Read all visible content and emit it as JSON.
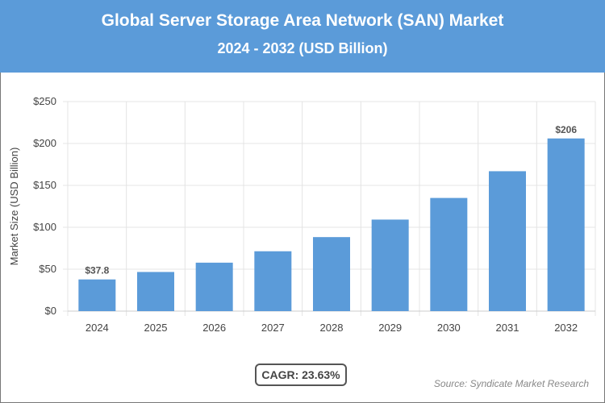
{
  "chart_data": {
    "type": "bar",
    "title": "Global Server Storage Area Network (SAN) Market",
    "subtitle": "2024 - 2032 (USD Billion)",
    "ylabel": "Market Size (USD Billion)",
    "xlabel": "",
    "categories": [
      "2024",
      "2025",
      "2026",
      "2027",
      "2028",
      "2029",
      "2030",
      "2031",
      "2032"
    ],
    "values": [
      37.8,
      46.7,
      57.8,
      71.4,
      88.3,
      109.2,
      135.0,
      166.9,
      206
    ],
    "data_labels": {
      "2024": "$37.8",
      "2032": "$206"
    },
    "ylim": [
      0,
      250
    ],
    "yticks": [
      "$0",
      "$50",
      "$100",
      "$150",
      "$200",
      "$250"
    ],
    "grid": true,
    "bar_color": "#5b9bd9"
  },
  "header_color": "#5b9bd9",
  "cagr_label": "CAGR: 23.63%",
  "source": "Source: Syndicate Market Research"
}
